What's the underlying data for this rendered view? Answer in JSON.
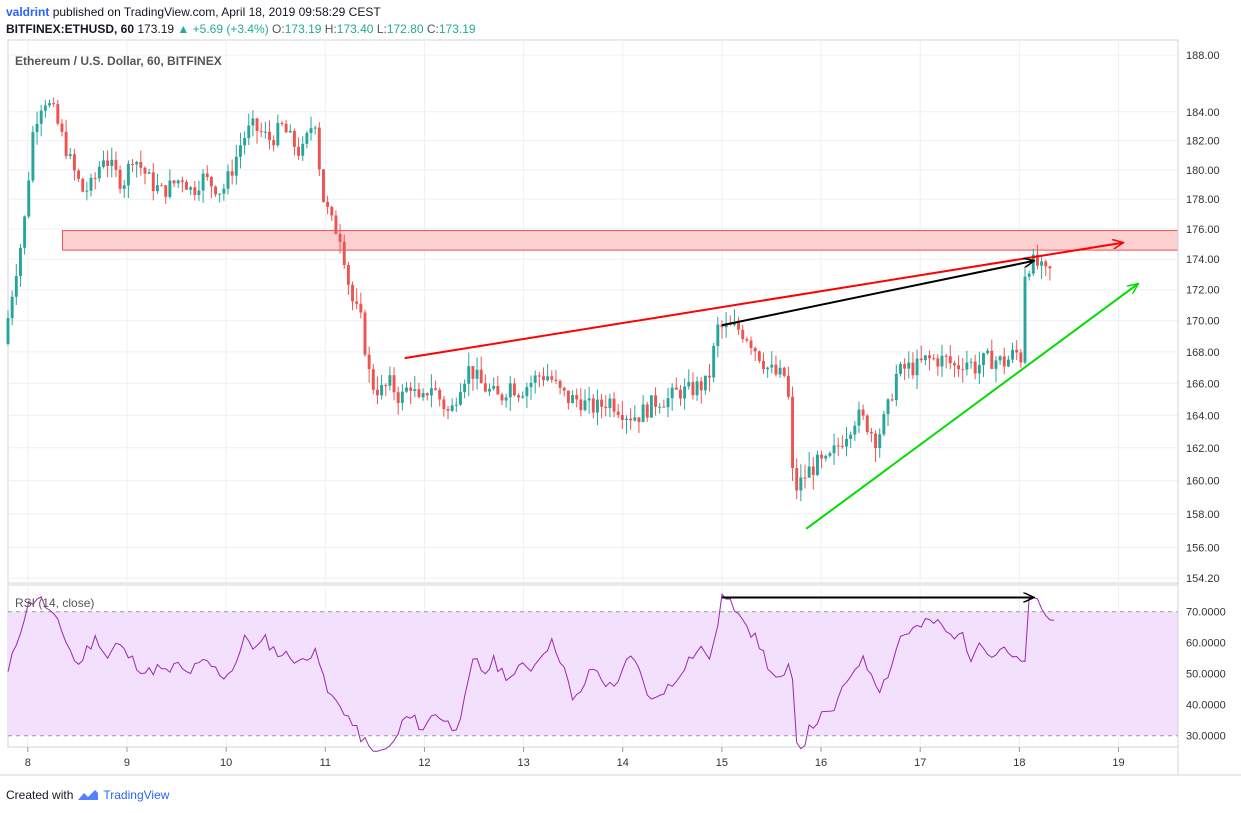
{
  "header": {
    "user": "valdrint",
    "published_text": "published on TradingView.com, April 18, 2019 09:58:29 CEST",
    "symbol": "BITFINEX:ETHUSD, 60",
    "price": "173.19",
    "change": "+5.69 (+3.4%)",
    "o_label": "O:",
    "o_value": "173.19",
    "h_label": "H:",
    "h_value": "173.40",
    "l_label": "L:",
    "l_value": "172.80",
    "c_label": "C:",
    "c_value": "173.19"
  },
  "footer": {
    "created_with": "Created with",
    "brand": "TradingView"
  },
  "colors": {
    "up": "#26a69a",
    "down": "#ef5350",
    "resistance_line": "#ff0000",
    "support_line": "#00dd00",
    "zone_fill": "#fcd0d0",
    "rsi_line": "#9c27b0",
    "rsi_band": "#f3e0fc",
    "grid": "#eef0f3",
    "axis_text": "#333333"
  },
  "chart_data": [
    {
      "type": "candlestick",
      "title": "Ethereum / U.S. Dollar, 60, BITFINEX",
      "ylim": [
        154.2,
        188.5
      ],
      "y_ticks": [
        "188.00",
        "184.00",
        "182.00",
        "180.00",
        "178.00",
        "176.00",
        "174.00",
        "172.00",
        "170.00",
        "168.00",
        "166.00",
        "164.00",
        "162.00",
        "160.00",
        "158.00",
        "156.00",
        "154.20"
      ],
      "x_ticks": [
        "8",
        "9",
        "10",
        "11",
        "12",
        "13",
        "14",
        "15",
        "16",
        "17",
        "18",
        "19"
      ],
      "x_unit": "days (April 2019)",
      "xlim": [
        7.8,
        19.6
      ],
      "anchors": [
        [
          7.8,
          168.5
        ],
        [
          7.9,
          172.5
        ],
        [
          8.0,
          176
        ],
        [
          8.1,
          183
        ],
        [
          8.2,
          185
        ],
        [
          8.3,
          184
        ],
        [
          8.4,
          182
        ],
        [
          8.5,
          180
        ],
        [
          8.6,
          178.5
        ],
        [
          8.7,
          179
        ],
        [
          8.8,
          181
        ],
        [
          8.9,
          180
        ],
        [
          9.0,
          179
        ],
        [
          9.1,
          181
        ],
        [
          9.2,
          180
        ],
        [
          9.3,
          179
        ],
        [
          9.4,
          178.5
        ],
        [
          9.5,
          179
        ],
        [
          9.6,
          179.5
        ],
        [
          9.7,
          178.5
        ],
        [
          9.8,
          179.5
        ],
        [
          9.9,
          179
        ],
        [
          10.0,
          178.5
        ],
        [
          10.1,
          180
        ],
        [
          10.2,
          182
        ],
        [
          10.3,
          183
        ],
        [
          10.4,
          182.5
        ],
        [
          10.5,
          182
        ],
        [
          10.6,
          183
        ],
        [
          10.7,
          182
        ],
        [
          10.8,
          181
        ],
        [
          10.9,
          183
        ],
        [
          10.95,
          183.5
        ],
        [
          11.0,
          178.5
        ],
        [
          11.1,
          176.5
        ],
        [
          11.2,
          175.5
        ],
        [
          11.3,
          171.5
        ],
        [
          11.4,
          170
        ],
        [
          11.5,
          166
        ],
        [
          11.6,
          165.5
        ],
        [
          11.7,
          166
        ],
        [
          11.8,
          165
        ],
        [
          11.9,
          166
        ],
        [
          12.0,
          164.5
        ],
        [
          12.1,
          166
        ],
        [
          12.2,
          165
        ],
        [
          12.3,
          164
        ],
        [
          12.4,
          166
        ],
        [
          12.5,
          167
        ],
        [
          12.6,
          166
        ],
        [
          12.7,
          165.5
        ],
        [
          12.8,
          165
        ],
        [
          12.9,
          166
        ],
        [
          13.0,
          165.5
        ],
        [
          13.1,
          166
        ],
        [
          13.2,
          166.5
        ],
        [
          13.3,
          166.5
        ],
        [
          13.4,
          165.5
        ],
        [
          13.5,
          165
        ],
        [
          13.6,
          165
        ],
        [
          13.7,
          164.5
        ],
        [
          13.8,
          164.5
        ],
        [
          13.9,
          165
        ],
        [
          14.0,
          164.5
        ],
        [
          14.1,
          164
        ],
        [
          14.2,
          164
        ],
        [
          14.3,
          164.5
        ],
        [
          14.4,
          165
        ],
        [
          14.5,
          165
        ],
        [
          14.6,
          165.5
        ],
        [
          14.7,
          165.5
        ],
        [
          14.8,
          165.8
        ],
        [
          14.9,
          166
        ],
        [
          15.0,
          169.5
        ],
        [
          15.1,
          169.5
        ],
        [
          15.2,
          169.5
        ],
        [
          15.3,
          169
        ],
        [
          15.4,
          168
        ],
        [
          15.5,
          167
        ],
        [
          15.6,
          166.5
        ],
        [
          15.7,
          166.5
        ],
        [
          15.75,
          160.5
        ],
        [
          15.8,
          159.5
        ],
        [
          15.9,
          160.5
        ],
        [
          16.0,
          161
        ],
        [
          16.1,
          161
        ],
        [
          16.2,
          162
        ],
        [
          16.3,
          163
        ],
        [
          16.4,
          164
        ],
        [
          16.5,
          163.5
        ],
        [
          16.6,
          162.5
        ],
        [
          16.7,
          164
        ],
        [
          16.8,
          166.5
        ],
        [
          16.9,
          167
        ],
        [
          17.0,
          167
        ],
        [
          17.1,
          167.5
        ],
        [
          17.2,
          167.5
        ],
        [
          17.3,
          167.5
        ],
        [
          17.4,
          167
        ],
        [
          17.5,
          167.5
        ],
        [
          17.6,
          167
        ],
        [
          17.7,
          167.5
        ],
        [
          17.8,
          167.5
        ],
        [
          17.9,
          167.3
        ],
        [
          18.0,
          168
        ],
        [
          18.08,
          167.5
        ],
        [
          18.1,
          173.5
        ],
        [
          18.2,
          173.8
        ],
        [
          18.3,
          173
        ],
        [
          18.35,
          173.19
        ]
      ],
      "annotations": {
        "resistance_zone": [
          174.6,
          175.9
        ],
        "resistance_trendline": [
          [
            11.8,
            167.6
          ],
          [
            19.05,
            175.1
          ]
        ],
        "black_arrow": [
          [
            15.0,
            169.7
          ],
          [
            18.15,
            173.9
          ]
        ],
        "support_trendline": [
          [
            15.85,
            157.1
          ],
          [
            19.2,
            172.4
          ]
        ]
      }
    },
    {
      "type": "line",
      "title": "RSI (14, close)",
      "ylim": [
        27,
        77
      ],
      "y_ticks": [
        "70.0000",
        "60.0000",
        "50.0000",
        "40.0000",
        "30.0000"
      ],
      "band": [
        30,
        70
      ],
      "anchors": [
        [
          7.8,
          50
        ],
        [
          7.9,
          62
        ],
        [
          8.0,
          72
        ],
        [
          8.1,
          75
        ],
        [
          8.2,
          71
        ],
        [
          8.3,
          66
        ],
        [
          8.4,
          60
        ],
        [
          8.5,
          52
        ],
        [
          8.6,
          58
        ],
        [
          8.7,
          62
        ],
        [
          8.8,
          55
        ],
        [
          8.9,
          60
        ],
        [
          9.0,
          56
        ],
        [
          9.1,
          53
        ],
        [
          9.2,
          50
        ],
        [
          9.3,
          52
        ],
        [
          9.4,
          50
        ],
        [
          9.5,
          53
        ],
        [
          9.6,
          50
        ],
        [
          9.7,
          52
        ],
        [
          9.8,
          54
        ],
        [
          9.9,
          51
        ],
        [
          10.0,
          49
        ],
        [
          10.1,
          54
        ],
        [
          10.2,
          62
        ],
        [
          10.3,
          58
        ],
        [
          10.4,
          61
        ],
        [
          10.5,
          57
        ],
        [
          10.6,
          56
        ],
        [
          10.7,
          55
        ],
        [
          10.8,
          53
        ],
        [
          10.9,
          60
        ],
        [
          11.0,
          45
        ],
        [
          11.1,
          41
        ],
        [
          11.2,
          38
        ],
        [
          11.3,
          32
        ],
        [
          11.4,
          28
        ],
        [
          11.5,
          22
        ],
        [
          11.6,
          25
        ],
        [
          11.7,
          28
        ],
        [
          11.8,
          36
        ],
        [
          11.9,
          35
        ],
        [
          12.0,
          32
        ],
        [
          12.1,
          38
        ],
        [
          12.2,
          35
        ],
        [
          12.3,
          32
        ],
        [
          12.4,
          40
        ],
        [
          12.5,
          55
        ],
        [
          12.6,
          50
        ],
        [
          12.7,
          54
        ],
        [
          12.8,
          50
        ],
        [
          12.9,
          49
        ],
        [
          13.0,
          53
        ],
        [
          13.1,
          52
        ],
        [
          13.2,
          58
        ],
        [
          13.3,
          60
        ],
        [
          13.4,
          53
        ],
        [
          13.5,
          40
        ],
        [
          13.6,
          46
        ],
        [
          13.7,
          52
        ],
        [
          13.8,
          48
        ],
        [
          13.9,
          45
        ],
        [
          14.0,
          52
        ],
        [
          14.1,
          55
        ],
        [
          14.2,
          48
        ],
        [
          14.3,
          40
        ],
        [
          14.4,
          45
        ],
        [
          14.5,
          46
        ],
        [
          14.6,
          52
        ],
        [
          14.7,
          56
        ],
        [
          14.8,
          58
        ],
        [
          14.9,
          55
        ],
        [
          15.0,
          75
        ],
        [
          15.1,
          72
        ],
        [
          15.2,
          70
        ],
        [
          15.3,
          63
        ],
        [
          15.4,
          58
        ],
        [
          15.5,
          50
        ],
        [
          15.6,
          47
        ],
        [
          15.7,
          53
        ],
        [
          15.75,
          30
        ],
        [
          15.8,
          26
        ],
        [
          15.9,
          33
        ],
        [
          16.0,
          36
        ],
        [
          16.1,
          37
        ],
        [
          16.2,
          43
        ],
        [
          16.3,
          50
        ],
        [
          16.4,
          55
        ],
        [
          16.5,
          51
        ],
        [
          16.6,
          45
        ],
        [
          16.7,
          52
        ],
        [
          16.8,
          62
        ],
        [
          16.9,
          64
        ],
        [
          17.0,
          65
        ],
        [
          17.1,
          67
        ],
        [
          17.2,
          66
        ],
        [
          17.3,
          62
        ],
        [
          17.4,
          64
        ],
        [
          17.5,
          55
        ],
        [
          17.6,
          62
        ],
        [
          17.7,
          55
        ],
        [
          17.8,
          58
        ],
        [
          17.9,
          56
        ],
        [
          18.0,
          53
        ],
        [
          18.08,
          56
        ],
        [
          18.1,
          74
        ],
        [
          18.2,
          73
        ],
        [
          18.3,
          67
        ],
        [
          18.35,
          67
        ]
      ],
      "annotations": {
        "black_arrow": [
          [
            15.0,
            74.6
          ],
          [
            18.15,
            74.6
          ]
        ]
      }
    }
  ]
}
